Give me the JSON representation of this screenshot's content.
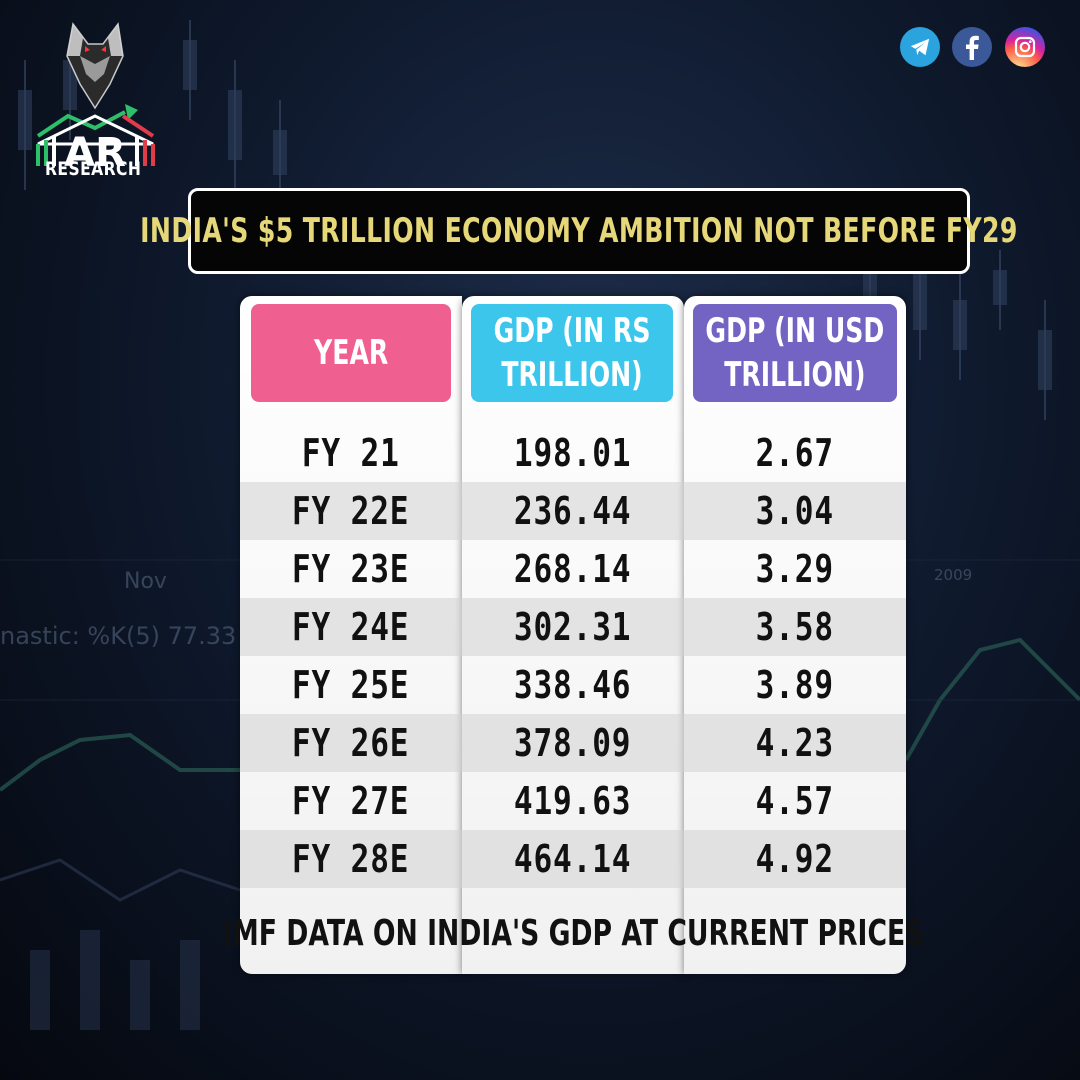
{
  "brand": {
    "name": "RESEARCH",
    "mark_letters": "AR"
  },
  "social": [
    {
      "icon": "telegram-icon",
      "color": "#2aa3de"
    },
    {
      "icon": "facebook-icon",
      "color": "#3b5998"
    },
    {
      "icon": "instagram-icon",
      "color": "#d6249f"
    }
  ],
  "background": {
    "text_nov": "Nov",
    "text_stoch": "nastic: %K(5) 77.33",
    "text_year": "2009"
  },
  "chart_data": {
    "type": "table",
    "title": "INDIA'S $5 TRILLION ECONOMY AMBITION NOT BEFORE FY29",
    "columns": [
      "YEAR",
      "GDP (IN RS TRILLION)",
      "GDP (IN USD TRILLION)"
    ],
    "header_lines": {
      "year": [
        "YEAR"
      ],
      "rs": [
        "GDP (IN RS",
        "TRILLION)"
      ],
      "usd": [
        "GDP (IN USD",
        "TRILLION)"
      ]
    },
    "header_colors": {
      "year": "#ef6090",
      "rs": "#3dc6ec",
      "usd": "#7363c2"
    },
    "rows": [
      {
        "year": "FY 21",
        "gdp_rs": "198.01",
        "gdp_usd": "2.67"
      },
      {
        "year": "FY 22E",
        "gdp_rs": "236.44",
        "gdp_usd": "3.04"
      },
      {
        "year": "FY 23E",
        "gdp_rs": "268.14",
        "gdp_usd": "3.29"
      },
      {
        "year": "FY 24E",
        "gdp_rs": "302.31",
        "gdp_usd": "3.58"
      },
      {
        "year": "FY 25E",
        "gdp_rs": "338.46",
        "gdp_usd": "3.89"
      },
      {
        "year": "FY 26E",
        "gdp_rs": "378.09",
        "gdp_usd": "4.23"
      },
      {
        "year": "FY 27E",
        "gdp_rs": "419.63",
        "gdp_usd": "4.57"
      },
      {
        "year": "FY 28E",
        "gdp_rs": "464.14",
        "gdp_usd": "4.92"
      }
    ],
    "caption": "IMF DATA ON INDIA'S GDP AT CURRENT PRICES"
  }
}
